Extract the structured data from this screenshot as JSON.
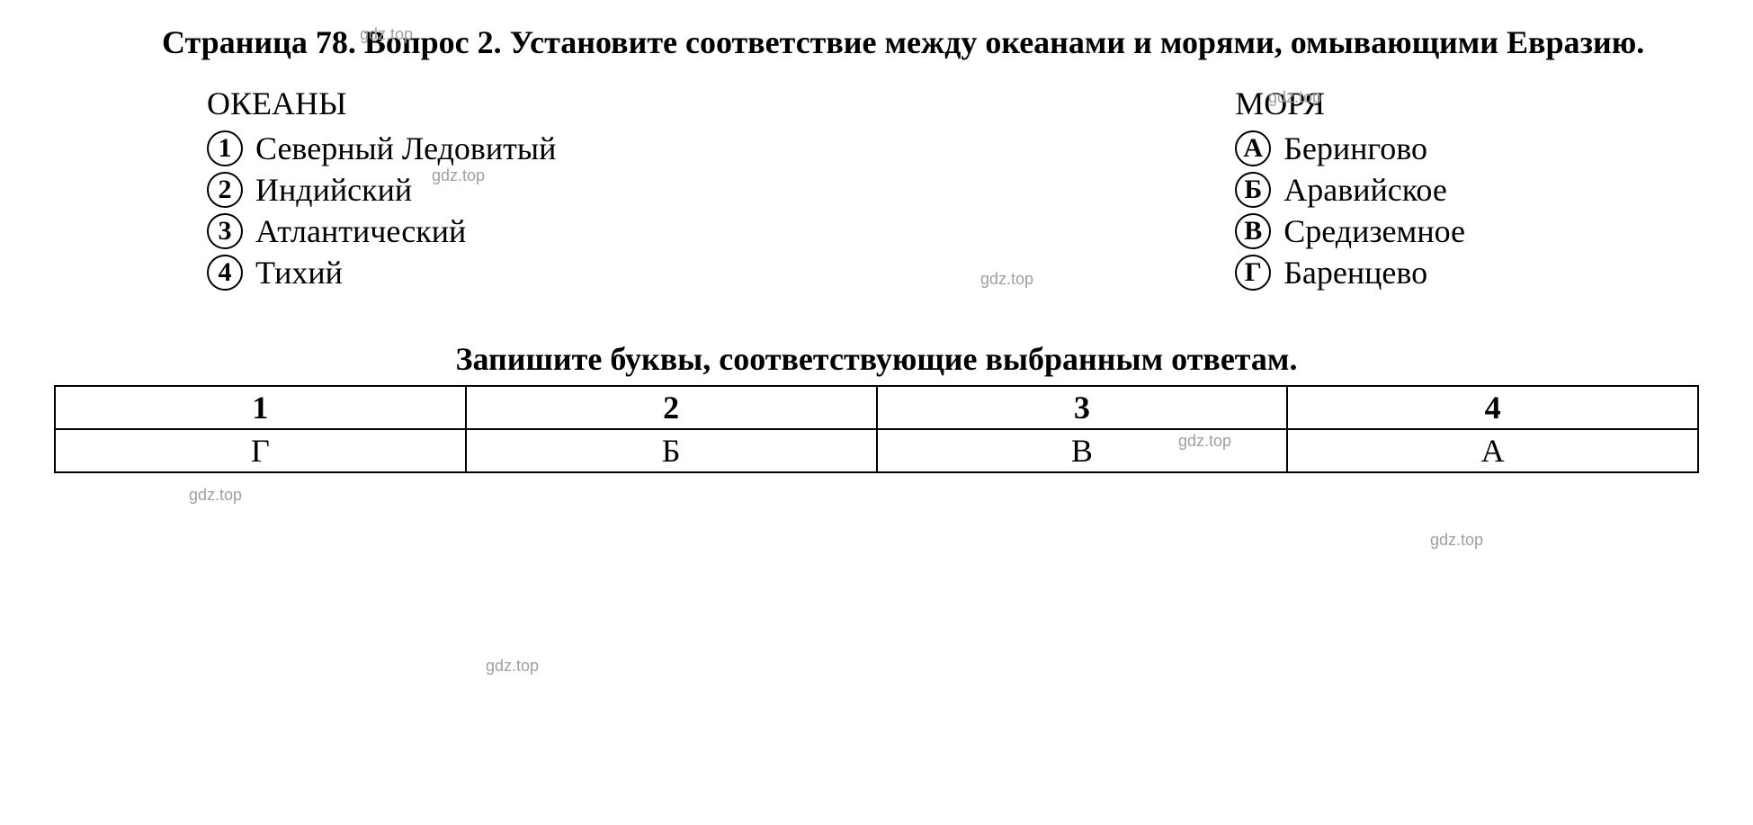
{
  "watermark_text": "gdz.top",
  "question": {
    "prefix": "Страница 78. Вопрос 2. Установите соответствие между океанами и морями, омывающими Евразию."
  },
  "columns": {
    "left_title": "ОКЕАНЫ",
    "right_title": "МОРЯ",
    "left_items": [
      {
        "marker": "1",
        "label": "Северный Ледовитый"
      },
      {
        "marker": "2",
        "label": "Индийский"
      },
      {
        "marker": "3",
        "label": "Атлантический"
      },
      {
        "marker": "4",
        "label": "Тихий"
      }
    ],
    "right_items": [
      {
        "marker": "А",
        "label": "Берингово"
      },
      {
        "marker": "Б",
        "label": "Аравийское"
      },
      {
        "marker": "В",
        "label": "Средиземное"
      },
      {
        "marker": "Г",
        "label": "Баренцево"
      }
    ]
  },
  "subheader": "Запишите буквы, соответствующие выбранным ответам.",
  "table": {
    "headers": [
      "1",
      "2",
      "3",
      "4"
    ],
    "answers": [
      "Г",
      "Б",
      "В",
      "А"
    ]
  },
  "style": {
    "font_family": "Times New Roman",
    "header_fontsize": 36,
    "list_fontsize": 36,
    "watermark_color": "#a0a0a0",
    "text_color": "#000000",
    "background_color": "#ffffff",
    "marker_border_width": 2.5,
    "table_border_width": 2
  }
}
